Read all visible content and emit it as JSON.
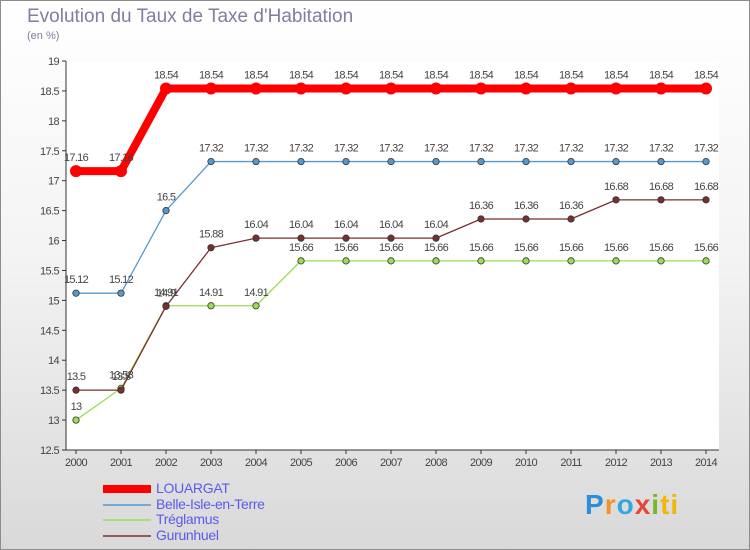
{
  "title": "Evolution du Taux de Taxe d'Habitation",
  "subtitle": "(en %)",
  "logo_text": "Proxiti",
  "chart_data": {
    "type": "line",
    "title": "Evolution du Taux de Taxe d'Habitation",
    "ylabel": "(en %)",
    "xlabel": "",
    "x": [
      "2000",
      "2001",
      "2002",
      "2003",
      "2004",
      "2005",
      "2006",
      "2007",
      "2008",
      "2009",
      "2010",
      "2011",
      "2012",
      "2013",
      "2014"
    ],
    "ylim": [
      12.5,
      19
    ],
    "yticks": [
      "12.5",
      "13",
      "13.5",
      "14",
      "14.5",
      "15",
      "15.5",
      "16",
      "16.5",
      "17",
      "17.5",
      "18",
      "18.5",
      "19"
    ],
    "grid": false,
    "legend_position": "bottom-left",
    "series": [
      {
        "name": "LOUARGAT",
        "color": "#ff0000",
        "values": [
          17.16,
          17.16,
          18.54,
          18.54,
          18.54,
          18.54,
          18.54,
          18.54,
          18.54,
          18.54,
          18.54,
          18.54,
          18.54,
          18.54,
          18.54
        ],
        "labels": [
          "17.16",
          "17.16",
          "18.54",
          "18.54",
          "18.54",
          "18.54",
          "18.54",
          "18.54",
          "18.54",
          "18.54",
          "18.54",
          "18.54",
          "18.54",
          "18.54",
          "18.54"
        ]
      },
      {
        "name": "Belle-Isle-en-Terre",
        "color": "#5599d0",
        "values": [
          15.12,
          15.12,
          16.5,
          17.32,
          17.32,
          17.32,
          17.32,
          17.32,
          17.32,
          17.32,
          17.32,
          17.32,
          17.32,
          17.32,
          17.32
        ],
        "labels": [
          "15.12",
          "15.12",
          "16.5",
          "17.32",
          "17.32",
          "17.32",
          "17.32",
          "17.32",
          "17.32",
          "17.32",
          "17.32",
          "17.32",
          "17.32",
          "17.32",
          "17.32"
        ]
      },
      {
        "name": "Tréglamus",
        "color": "#99dd55",
        "values": [
          13,
          13.53,
          14.91,
          14.91,
          14.91,
          15.66,
          15.66,
          15.66,
          15.66,
          15.66,
          15.66,
          15.66,
          15.66,
          15.66,
          15.66
        ],
        "labels": [
          "13",
          "13.53",
          "14.91",
          "14.91",
          "14.91",
          "15.66",
          "15.66",
          "15.66",
          "15.66",
          "15.66",
          "15.66",
          "15.66",
          "15.66",
          "15.66",
          "15.66"
        ]
      },
      {
        "name": "Gurunhuel",
        "color": "#7a2f2f",
        "values": [
          13.5,
          13.5,
          14.9,
          15.88,
          16.04,
          16.04,
          16.04,
          16.04,
          16.04,
          16.36,
          16.36,
          16.36,
          16.68,
          16.68,
          16.68
        ],
        "labels": [
          "13.5",
          "13.5",
          "14.9",
          "15.88",
          "16.04",
          "16.04",
          "16.04",
          "16.04",
          "16.04",
          "16.36",
          "16.36",
          "16.36",
          "16.68",
          "16.68",
          "16.68"
        ]
      }
    ]
  }
}
